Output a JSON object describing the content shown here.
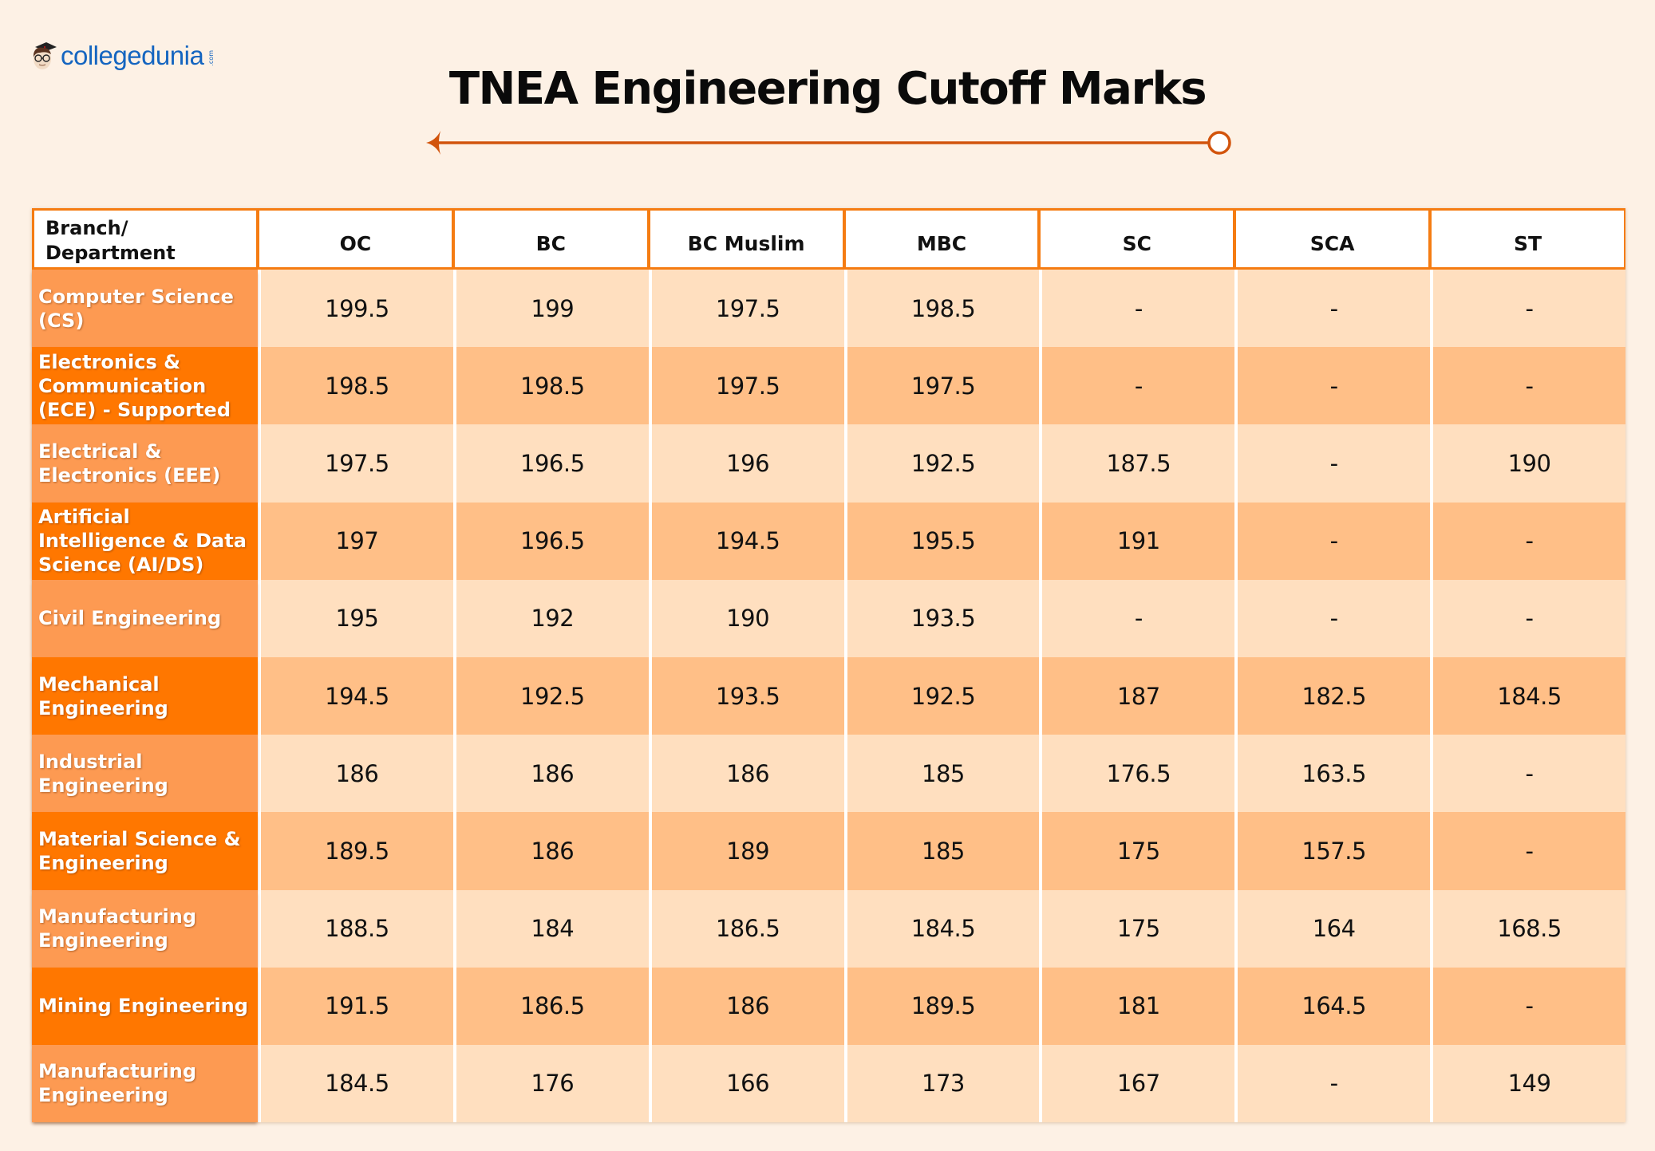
{
  "brand": {
    "logo_text": "collegedunia",
    "logo_suffix": ".com",
    "accent_color": "#f57c12",
    "logo_color": "#1565c0"
  },
  "title": "TNEA Engineering Cutoff Marks",
  "table": {
    "headers": [
      "Branch/ Department",
      "OC",
      "BC",
      "BC Muslim",
      "MBC",
      "SC",
      "SCA",
      "ST"
    ],
    "rows": [
      {
        "branch": "Computer Science (CS)",
        "values": [
          "199.5",
          "199",
          "197.5",
          "198.5",
          "-",
          "-",
          "-"
        ]
      },
      {
        "branch": "Electronics & Communication (ECE) - Supported",
        "values": [
          "198.5",
          "198.5",
          "197.5",
          "197.5",
          "-",
          "-",
          "-"
        ]
      },
      {
        "branch": "Electrical & Electronics (EEE)",
        "values": [
          "197.5",
          "196.5",
          "196",
          "192.5",
          "187.5",
          "-",
          "190"
        ]
      },
      {
        "branch": "Artificial Intelligence & Data Science (AI/DS)",
        "values": [
          "197",
          "196.5",
          "194.5",
          "195.5",
          "191",
          "-",
          "-"
        ]
      },
      {
        "branch": "Civil Engineering",
        "values": [
          "195",
          "192",
          "190",
          "193.5",
          "-",
          "-",
          "-"
        ]
      },
      {
        "branch": "Mechanical Engineering",
        "values": [
          "194.5",
          "192.5",
          "193.5",
          "192.5",
          "187",
          "182.5",
          "184.5"
        ]
      },
      {
        "branch": "Industrial Engineering",
        "values": [
          "186",
          "186",
          "186",
          "185",
          "176.5",
          "163.5",
          "-"
        ]
      },
      {
        "branch": "Material Science & Engineering",
        "values": [
          "189.5",
          "186",
          "189",
          "185",
          "175",
          "157.5",
          "-"
        ]
      },
      {
        "branch": "Manufacturing Engineering",
        "values": [
          "188.5",
          "184",
          "186.5",
          "184.5",
          "175",
          "164",
          "168.5"
        ]
      },
      {
        "branch": "Mining Engineering",
        "values": [
          "191.5",
          "186.5",
          "186",
          "189.5",
          "181",
          "164.5",
          "-"
        ]
      },
      {
        "branch": "Manufacturing Engineering",
        "values": [
          "184.5",
          "176",
          "166",
          "173",
          "167",
          "-",
          "149"
        ]
      }
    ]
  },
  "chart_data": {
    "type": "table",
    "title": "TNEA Engineering Cutoff Marks",
    "columns": [
      "Branch/ Department",
      "OC",
      "BC",
      "BC Muslim",
      "MBC",
      "SC",
      "SCA",
      "ST"
    ],
    "rows": [
      [
        "Computer Science (CS)",
        199.5,
        199,
        197.5,
        198.5,
        null,
        null,
        null
      ],
      [
        "Electronics & Communication (ECE) - Supported",
        198.5,
        198.5,
        197.5,
        197.5,
        null,
        null,
        null
      ],
      [
        "Electrical & Electronics (EEE)",
        197.5,
        196.5,
        196,
        192.5,
        187.5,
        null,
        190
      ],
      [
        "Artificial Intelligence & Data Science (AI/DS)",
        197,
        196.5,
        194.5,
        195.5,
        191,
        null,
        null
      ],
      [
        "Civil Engineering",
        195,
        192,
        190,
        193.5,
        null,
        null,
        null
      ],
      [
        "Mechanical Engineering",
        194.5,
        192.5,
        193.5,
        192.5,
        187,
        182.5,
        184.5
      ],
      [
        "Industrial Engineering",
        186,
        186,
        186,
        185,
        176.5,
        163.5,
        null
      ],
      [
        "Material Science & Engineering",
        189.5,
        186,
        189,
        185,
        175,
        157.5,
        null
      ],
      [
        "Manufacturing Engineering",
        188.5,
        184,
        186.5,
        184.5,
        175,
        164,
        168.5
      ],
      [
        "Mining Engineering",
        191.5,
        186.5,
        186,
        189.5,
        181,
        164.5,
        null
      ],
      [
        "Manufacturing Engineering",
        184.5,
        176,
        166,
        173,
        167,
        null,
        149
      ]
    ]
  }
}
